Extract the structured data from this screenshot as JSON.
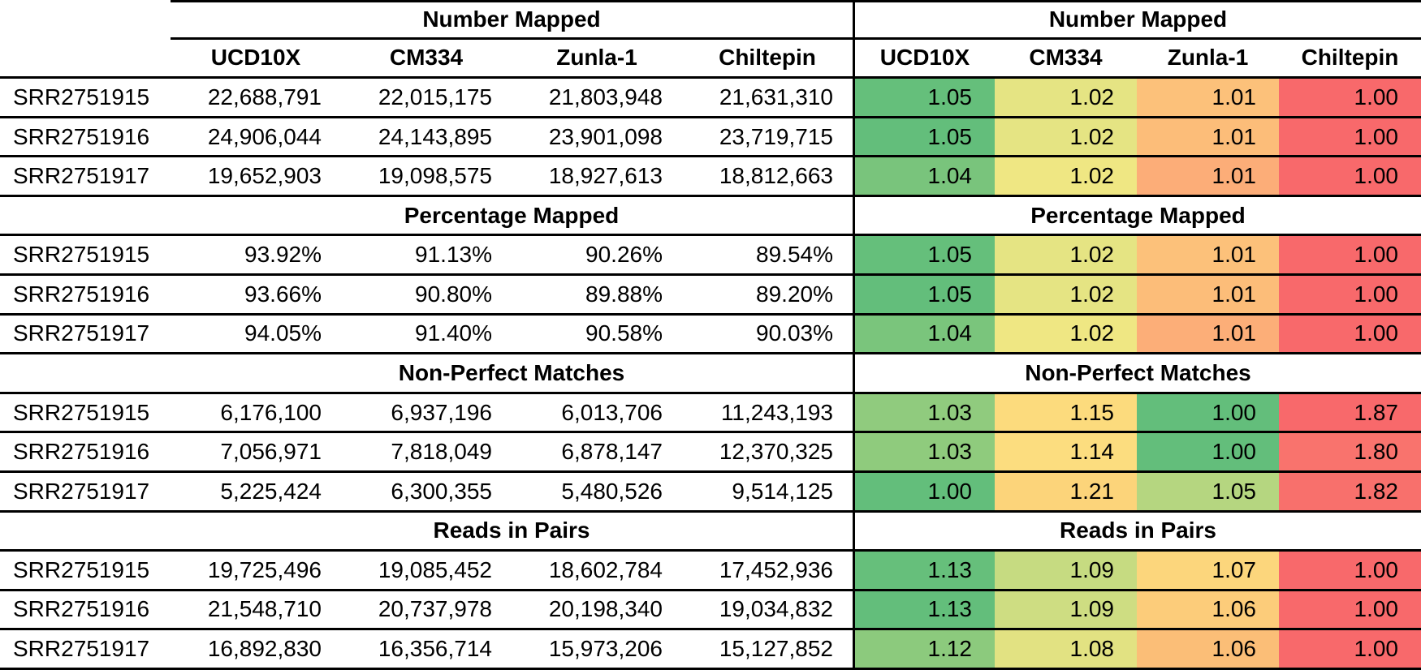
{
  "table": {
    "row_labels": [
      "SRR2751915",
      "SRR2751916",
      "SRR2751917"
    ],
    "column_headers": [
      "UCD10X",
      "CM334",
      "Zunla-1",
      "Chiltepin"
    ],
    "sections": [
      {
        "title": "Number Mapped",
        "rows": [
          {
            "label": "SRR2751915",
            "values": [
              "22,688,791",
              "22,015,175",
              "21,803,948",
              "21,631,310"
            ],
            "ratios": [
              {
                "v": "1.05",
                "c": "#65bf7b"
              },
              {
                "v": "1.02",
                "c": "#e5e483"
              },
              {
                "v": "1.01",
                "c": "#fcc17a"
              },
              {
                "v": "1.00",
                "c": "#f8696b"
              }
            ]
          },
          {
            "label": "SRR2751916",
            "values": [
              "24,906,044",
              "24,143,895",
              "23,901,098",
              "23,719,715"
            ],
            "ratios": [
              {
                "v": "1.05",
                "c": "#63be7b"
              },
              {
                "v": "1.02",
                "c": "#e5e483"
              },
              {
                "v": "1.01",
                "c": "#fcbd79"
              },
              {
                "v": "1.00",
                "c": "#f8696b"
              }
            ]
          },
          {
            "label": "SRR2751917",
            "values": [
              "19,652,903",
              "19,098,575",
              "18,927,613",
              "18,812,663"
            ],
            "ratios": [
              {
                "v": "1.04",
                "c": "#79c47c"
              },
              {
                "v": "1.02",
                "c": "#efe783"
              },
              {
                "v": "1.01",
                "c": "#fcad78"
              },
              {
                "v": "1.00",
                "c": "#f8696b"
              }
            ]
          }
        ]
      },
      {
        "title": "Percentage Mapped",
        "rows": [
          {
            "label": "SRR2751915",
            "values": [
              "93.92%",
              "91.13%",
              "90.26%",
              "89.54%"
            ],
            "ratios": [
              {
                "v": "1.05",
                "c": "#65bf7b"
              },
              {
                "v": "1.02",
                "c": "#e5e483"
              },
              {
                "v": "1.01",
                "c": "#fcc17a"
              },
              {
                "v": "1.00",
                "c": "#f8696b"
              }
            ]
          },
          {
            "label": "SRR2751916",
            "values": [
              "93.66%",
              "90.80%",
              "89.88%",
              "89.20%"
            ],
            "ratios": [
              {
                "v": "1.05",
                "c": "#63be7b"
              },
              {
                "v": "1.02",
                "c": "#e5e483"
              },
              {
                "v": "1.01",
                "c": "#fcbd79"
              },
              {
                "v": "1.00",
                "c": "#f8696b"
              }
            ]
          },
          {
            "label": "SRR2751917",
            "values": [
              "94.05%",
              "91.40%",
              "90.58%",
              "90.03%"
            ],
            "ratios": [
              {
                "v": "1.04",
                "c": "#7ac57c"
              },
              {
                "v": "1.02",
                "c": "#efe783"
              },
              {
                "v": "1.01",
                "c": "#fcae78"
              },
              {
                "v": "1.00",
                "c": "#f8696b"
              }
            ]
          }
        ]
      },
      {
        "title": "Non-Perfect Matches",
        "rows": [
          {
            "label": "SRR2751915",
            "values": [
              "6,176,100",
              "6,937,196",
              "6,013,706",
              "11,243,193"
            ],
            "ratios": [
              {
                "v": "1.03",
                "c": "#90cb7e"
              },
              {
                "v": "1.15",
                "c": "#fcdb7d"
              },
              {
                "v": "1.00",
                "c": "#63be7b"
              },
              {
                "v": "1.87",
                "c": "#f8696b"
              }
            ]
          },
          {
            "label": "SRR2751916",
            "values": [
              "7,056,971",
              "7,818,049",
              "6,878,147",
              "12,370,325"
            ],
            "ratios": [
              {
                "v": "1.03",
                "c": "#8fcb7d"
              },
              {
                "v": "1.14",
                "c": "#fcdd7f"
              },
              {
                "v": "1.00",
                "c": "#63be7b"
              },
              {
                "v": "1.80",
                "c": "#f9736d"
              }
            ]
          },
          {
            "label": "SRR2751917",
            "values": [
              "5,225,424",
              "6,300,355",
              "5,480,526",
              "9,514,125"
            ],
            "ratios": [
              {
                "v": "1.00",
                "c": "#63be7b"
              },
              {
                "v": "1.21",
                "c": "#fcd47a"
              },
              {
                "v": "1.05",
                "c": "#b5d680"
              },
              {
                "v": "1.82",
                "c": "#f8706c"
              }
            ]
          }
        ]
      },
      {
        "title": "Reads in Pairs",
        "rows": [
          {
            "label": "SRR2751915",
            "values": [
              "19,725,496",
              "19,085,452",
              "18,602,784",
              "17,452,936"
            ],
            "ratios": [
              {
                "v": "1.13",
                "c": "#66bf7b"
              },
              {
                "v": "1.09",
                "c": "#c6db81"
              },
              {
                "v": "1.07",
                "c": "#fcd67c"
              },
              {
                "v": "1.00",
                "c": "#f8696b"
              }
            ]
          },
          {
            "label": "SRR2751916",
            "values": [
              "21,548,710",
              "20,737,978",
              "20,198,340",
              "19,034,832"
            ],
            "ratios": [
              {
                "v": "1.13",
                "c": "#63be7b"
              },
              {
                "v": "1.09",
                "c": "#cedd82"
              },
              {
                "v": "1.06",
                "c": "#fccc7a"
              },
              {
                "v": "1.00",
                "c": "#f8696b"
              }
            ]
          },
          {
            "label": "SRR2751917",
            "values": [
              "16,892,830",
              "16,356,714",
              "15,973,206",
              "15,127,852"
            ],
            "ratios": [
              {
                "v": "1.12",
                "c": "#8cca7d"
              },
              {
                "v": "1.08",
                "c": "#e2e282"
              },
              {
                "v": "1.06",
                "c": "#fbbe77"
              },
              {
                "v": "1.00",
                "c": "#f8696b"
              }
            ]
          }
        ]
      }
    ]
  },
  "chart_data": {
    "type": "table",
    "subtype": "heatmap-ratio-table",
    "row_ids": [
      "SRR2751915",
      "SRR2751916",
      "SRR2751917"
    ],
    "columns": [
      "UCD10X",
      "CM334",
      "Zunla-1",
      "Chiltepin"
    ],
    "sections": [
      {
        "title": "Number Mapped",
        "values": [
          [
            22688791,
            22015175,
            21803948,
            21631310
          ],
          [
            24906044,
            24143895,
            23901098,
            23719715
          ],
          [
            19652903,
            19098575,
            18927613,
            18812663
          ]
        ],
        "ratios": [
          [
            1.05,
            1.02,
            1.01,
            1.0
          ],
          [
            1.05,
            1.02,
            1.01,
            1.0
          ],
          [
            1.04,
            1.02,
            1.01,
            1.0
          ]
        ]
      },
      {
        "title": "Percentage Mapped",
        "values_percent": [
          [
            93.92,
            91.13,
            90.26,
            89.54
          ],
          [
            93.66,
            90.8,
            89.88,
            89.2
          ],
          [
            94.05,
            91.4,
            90.58,
            90.03
          ]
        ],
        "ratios": [
          [
            1.05,
            1.02,
            1.01,
            1.0
          ],
          [
            1.05,
            1.02,
            1.01,
            1.0
          ],
          [
            1.04,
            1.02,
            1.01,
            1.0
          ]
        ]
      },
      {
        "title": "Non-Perfect Matches",
        "values": [
          [
            6176100,
            6937196,
            6013706,
            11243193
          ],
          [
            7056971,
            7818049,
            6878147,
            12370325
          ],
          [
            5225424,
            6300355,
            5480526,
            9514125
          ]
        ],
        "ratios": [
          [
            1.03,
            1.15,
            1.0,
            1.87
          ],
          [
            1.03,
            1.14,
            1.0,
            1.8
          ],
          [
            1.0,
            1.21,
            1.05,
            1.82
          ]
        ]
      },
      {
        "title": "Reads in Pairs",
        "values": [
          [
            19725496,
            19085452,
            18602784,
            17452936
          ],
          [
            21548710,
            20737978,
            20198340,
            19034832
          ],
          [
            16892830,
            16356714,
            15973206,
            15127852
          ]
        ],
        "ratios": [
          [
            1.13,
            1.09,
            1.07,
            1.0
          ],
          [
            1.13,
            1.09,
            1.06,
            1.0
          ],
          [
            1.12,
            1.08,
            1.06,
            1.0
          ]
        ]
      }
    ],
    "color_scale": {
      "type": "3-color",
      "low": "#f8696b",
      "mid": "#ffeb84",
      "high": "#63be7b"
    },
    "layout": "left half raw values per genome assembly; right half same metrics as ratio heatmap (green=best, red=worst; inverted for Non-Perfect Matches)"
  }
}
